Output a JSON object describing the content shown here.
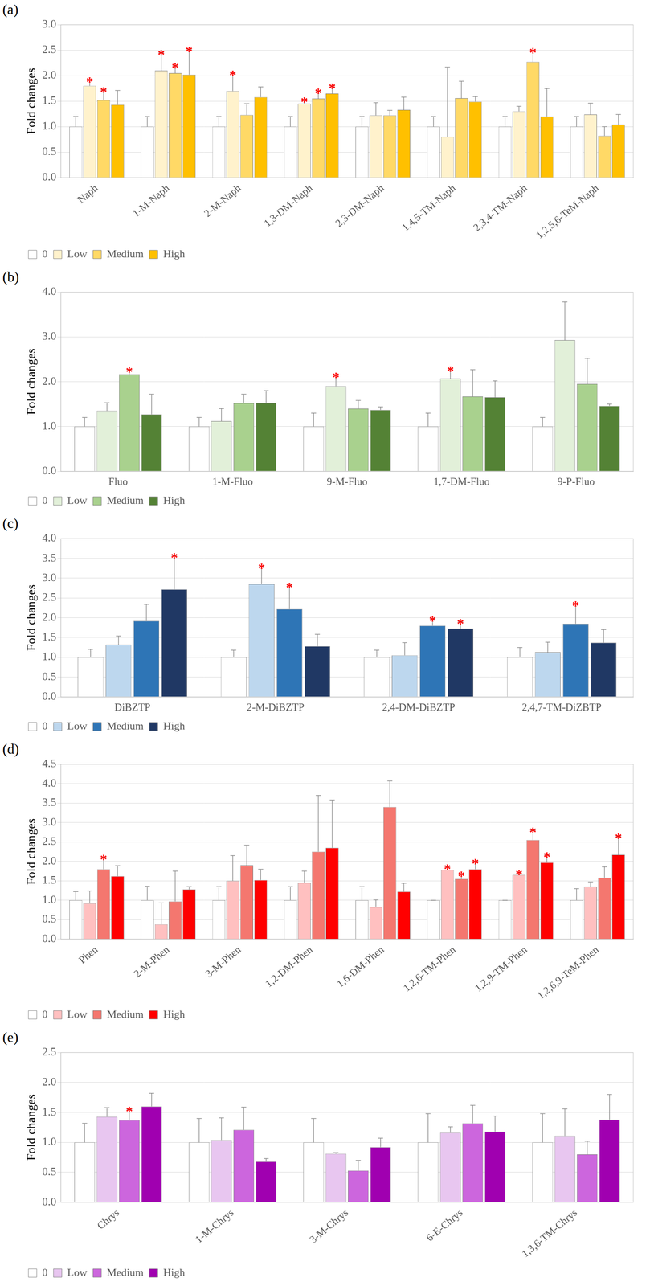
{
  "chart_data": [
    {
      "type": "bar",
      "title": "(a)",
      "y_label": "Fold changes",
      "categories": [
        "Naph",
        "1-M-Naph",
        "2-M-Naph",
        "1,3-DM-Naph",
        "2,3-DM-Naph",
        "1,4,5-TM-Naph",
        "2,3,4-TM-Naph",
        "1,2,5,6-TeM-Naph"
      ],
      "series": [
        {
          "name": "0",
          "color": "#ffffff",
          "values": [
            1.0,
            1.0,
            1.0,
            1.0,
            1.0,
            1.0,
            1.0,
            1.0
          ],
          "errors": [
            0.2,
            0.2,
            0.2,
            0.2,
            0.2,
            0.2,
            0.2,
            0.2
          ],
          "annotations": [
            null,
            null,
            null,
            null,
            null,
            null,
            null,
            null
          ]
        },
        {
          "name": "Low",
          "color": "#fff2cc",
          "values": [
            1.8,
            2.1,
            1.7,
            1.45,
            1.22,
            0.8,
            1.3,
            1.24
          ],
          "errors": [
            0.12,
            0.35,
            0.35,
            0.08,
            0.25,
            1.37,
            0.1,
            0.22
          ],
          "annotations": [
            "*",
            "*",
            "*",
            "*",
            null,
            null,
            null,
            null
          ]
        },
        {
          "name": "Medium",
          "color": "#ffd966",
          "values": [
            1.52,
            2.05,
            1.23,
            1.55,
            1.22,
            1.56,
            2.27,
            0.82
          ],
          "errors": [
            0.2,
            0.15,
            0.22,
            0.15,
            0.1,
            0.33,
            0.22,
            0.18
          ],
          "annotations": [
            "*",
            "*",
            null,
            "*",
            null,
            null,
            "*",
            null
          ]
        },
        {
          "name": "High",
          "color": "#ffc000",
          "values": [
            1.43,
            2.02,
            1.58,
            1.65,
            1.33,
            1.49,
            1.2,
            1.04
          ],
          "errors": [
            0.28,
            0.5,
            0.2,
            0.15,
            0.25,
            0.1,
            0.55,
            0.2
          ],
          "annotations": [
            null,
            "*",
            null,
            "*",
            null,
            null,
            null,
            null
          ]
        }
      ],
      "ylim": [
        0,
        3
      ],
      "yticks": [
        {
          "value": 0,
          "label": "0.0"
        },
        {
          "value": 0.5,
          "label": "0.5"
        },
        {
          "value": 1,
          "label": "1.0"
        },
        {
          "value": 1.5,
          "label": "1.5"
        },
        {
          "value": 2,
          "label": "2.0"
        },
        {
          "value": 2.5,
          "label": "2.5"
        },
        {
          "value": 3,
          "label": "3.0"
        }
      ],
      "grid": true,
      "legend": "bottom-left"
    },
    {
      "type": "bar",
      "title": "(b)",
      "y_label": "Fold changes",
      "categories": [
        "Fluo",
        "1-M-Fluo",
        "9-M-Fluo",
        "1,7-DM-Fluo",
        "9-P-Fluo"
      ],
      "series": [
        {
          "name": "0",
          "color": "#ffffff",
          "values": [
            1.0,
            1.0,
            1.0,
            1.0,
            1.0
          ],
          "errors": [
            0.2,
            0.2,
            0.3,
            0.3,
            0.2
          ],
          "annotations": [
            null,
            null,
            null,
            null,
            null
          ]
        },
        {
          "name": "Low",
          "color": "#e2f0d9",
          "values": [
            1.35,
            1.12,
            1.9,
            2.07,
            2.93
          ],
          "errors": [
            0.18,
            0.28,
            0.25,
            0.22,
            0.85
          ],
          "annotations": [
            null,
            null,
            "*",
            "*",
            null
          ]
        },
        {
          "name": "Medium",
          "color": "#a9d18e",
          "values": [
            2.17,
            1.52,
            1.4,
            1.67,
            1.95
          ],
          "errors": [
            0.1,
            0.2,
            0.18,
            0.6,
            0.57
          ],
          "annotations": [
            "*",
            null,
            null,
            null,
            null
          ]
        },
        {
          "name": "High",
          "color": "#548235",
          "values": [
            1.27,
            1.52,
            1.37,
            1.65,
            1.46
          ],
          "errors": [
            0.45,
            0.28,
            0.07,
            0.37,
            0.04
          ],
          "annotations": [
            null,
            null,
            null,
            null,
            null
          ]
        }
      ],
      "ylim": [
        0,
        4
      ],
      "yticks": [
        {
          "value": 0,
          "label": "0.0"
        },
        {
          "value": 1,
          "label": "1.0"
        },
        {
          "value": 2,
          "label": "2.0"
        },
        {
          "value": 3,
          "label": "3.0"
        },
        {
          "value": 4,
          "label": "4.0"
        }
      ],
      "grid": true,
      "legend": "bottom-left"
    },
    {
      "type": "bar",
      "title": "(c)",
      "y_label": "Fold changes",
      "categories": [
        "DiBZTP",
        "2-M-DiBZTP",
        "2,4-DM-DiBZTP",
        "2,4,7-TM-DiZBTP"
      ],
      "series": [
        {
          "name": "0",
          "color": "#ffffff",
          "values": [
            1.0,
            1.0,
            1.0,
            1.0
          ],
          "errors": [
            0.2,
            0.18,
            0.18,
            0.25
          ],
          "annotations": [
            null,
            null,
            null,
            null
          ]
        },
        {
          "name": "Low",
          "color": "#bdd7ee",
          "values": [
            1.32,
            2.85,
            1.05,
            1.13
          ],
          "errors": [
            0.22,
            0.45,
            0.32,
            0.25
          ],
          "annotations": [
            null,
            "*",
            null,
            null
          ]
        },
        {
          "name": "Medium",
          "color": "#2e75b6",
          "values": [
            1.92,
            2.22,
            1.8,
            1.85
          ],
          "errors": [
            0.42,
            0.6,
            0.17,
            0.5
          ],
          "annotations": [
            null,
            "*",
            "*",
            "*"
          ]
        },
        {
          "name": "High",
          "color": "#203864",
          "values": [
            2.72,
            1.28,
            1.73,
            1.37
          ],
          "errors": [
            0.85,
            0.3,
            0.17,
            0.33
          ],
          "annotations": [
            "*",
            null,
            "*",
            null
          ]
        }
      ],
      "ylim": [
        0,
        4
      ],
      "yticks": [
        {
          "value": 0,
          "label": "0.0"
        },
        {
          "value": 0.5,
          "label": "0.5"
        },
        {
          "value": 1,
          "label": "1.0"
        },
        {
          "value": 1.5,
          "label": "1.5"
        },
        {
          "value": 2,
          "label": "2.0"
        },
        {
          "value": 2.5,
          "label": "2.5"
        },
        {
          "value": 3,
          "label": "3.0"
        },
        {
          "value": 3.5,
          "label": "3.5"
        },
        {
          "value": 4,
          "label": "4.0"
        }
      ],
      "grid": true,
      "legend": "bottom-left"
    },
    {
      "type": "bar",
      "title": "(d)",
      "y_label": "Fold changes",
      "categories": [
        "Phen",
        "2-M-Phen",
        "3-M-Phen",
        "1,2-DM-Phen",
        "1,6-DM-Phen",
        "1,2,6-TM-Phen",
        "1,2,9-TM-Phen",
        "1,2,6,9-TeM-Phen"
      ],
      "series": [
        {
          "name": "0",
          "color": "#ffffff",
          "values": [
            1.0,
            1.0,
            1.0,
            1.0,
            1.0,
            1.0,
            1.0,
            1.0
          ],
          "errors": [
            0.22,
            0.36,
            0.35,
            0.35,
            0.35,
            0,
            0,
            0.3
          ],
          "annotations": [
            null,
            null,
            null,
            null,
            null,
            null,
            null,
            null
          ]
        },
        {
          "name": "Low",
          "color": "#ffc0c0",
          "values": [
            0.92,
            0.38,
            1.5,
            1.45,
            0.83,
            1.78,
            1.65,
            1.35
          ],
          "errors": [
            0.32,
            0.55,
            0.65,
            0.3,
            0.18,
            0.08,
            0.07,
            0.12
          ],
          "annotations": [
            null,
            null,
            null,
            null,
            null,
            "*",
            "*",
            null
          ]
        },
        {
          "name": "Medium",
          "color": "#f4776f",
          "values": [
            1.8,
            0.97,
            1.9,
            2.25,
            3.4,
            1.55,
            2.55,
            1.58
          ],
          "errors": [
            0.3,
            0.78,
            0.52,
            1.45,
            0.67,
            0.12,
            0.25,
            0.28
          ],
          "annotations": [
            "*",
            null,
            null,
            null,
            null,
            "*",
            "*",
            null
          ]
        },
        {
          "name": "High",
          "color": "#ff0000",
          "values": [
            1.62,
            1.28,
            1.52,
            2.35,
            1.22,
            1.8,
            1.97,
            2.17
          ],
          "errors": [
            0.27,
            0.07,
            0.28,
            1.23,
            0.22,
            0.2,
            0.2,
            0.48
          ],
          "annotations": [
            null,
            null,
            null,
            null,
            null,
            "*",
            "*",
            "*"
          ]
        }
      ],
      "ylim": [
        0,
        4.5
      ],
      "yticks": [
        {
          "value": 0,
          "label": "0.0"
        },
        {
          "value": 0.5,
          "label": "0.5"
        },
        {
          "value": 1,
          "label": "1.0"
        },
        {
          "value": 1.5,
          "label": "1.5"
        },
        {
          "value": 2,
          "label": "2.0"
        },
        {
          "value": 2.5,
          "label": "2.5"
        },
        {
          "value": 3,
          "label": "3.0"
        },
        {
          "value": 3.5,
          "label": "3.5"
        },
        {
          "value": 4,
          "label": "4.0"
        },
        {
          "value": 4.5,
          "label": "4.5"
        }
      ],
      "grid": true,
      "legend": "bottom-left"
    },
    {
      "type": "bar",
      "title": "(e)",
      "y_label": "Fold changes",
      "categories": [
        "Chrys",
        "1-M-Chrys",
        "3-M-Chrys",
        "6-E-Chrys",
        "1,3,6-TM-Chrys"
      ],
      "series": [
        {
          "name": "0",
          "color": "#ffffff",
          "values": [
            1.0,
            1.0,
            1.0,
            1.0,
            1.0
          ],
          "errors": [
            0.32,
            0.4,
            0.4,
            0.48,
            0.48
          ],
          "annotations": [
            null,
            null,
            null,
            null,
            null
          ]
        },
        {
          "name": "Low",
          "color": "#e8c6f0",
          "values": [
            1.43,
            1.04,
            0.81,
            1.16,
            1.11
          ],
          "errors": [
            0.15,
            0.37,
            0.02,
            0.1,
            0.45
          ],
          "annotations": [
            null,
            null,
            null,
            null,
            null
          ]
        },
        {
          "name": "Medium",
          "color": "#cc66dd",
          "values": [
            1.37,
            1.21,
            0.53,
            1.32,
            0.8
          ],
          "errors": [
            0.18,
            0.38,
            0.17,
            0.3,
            0.22
          ],
          "annotations": [
            "*",
            null,
            null,
            null,
            null
          ]
        },
        {
          "name": "High",
          "color": "#a000b0",
          "values": [
            1.6,
            0.68,
            0.92,
            1.18,
            1.38
          ],
          "errors": [
            0.22,
            0.05,
            0.15,
            0.26,
            0.42
          ],
          "annotations": [
            null,
            null,
            null,
            null,
            null
          ]
        }
      ],
      "ylim": [
        0,
        2.5
      ],
      "yticks": [
        {
          "value": 0,
          "label": "0.0"
        },
        {
          "value": 0.5,
          "label": "0.5"
        },
        {
          "value": 1,
          "label": "1.0"
        },
        {
          "value": 1.5,
          "label": "1.5"
        },
        {
          "value": 2,
          "label": "2.0"
        },
        {
          "value": 2.5,
          "label": "2.5"
        }
      ],
      "grid": true,
      "legend": "bottom-left"
    }
  ]
}
